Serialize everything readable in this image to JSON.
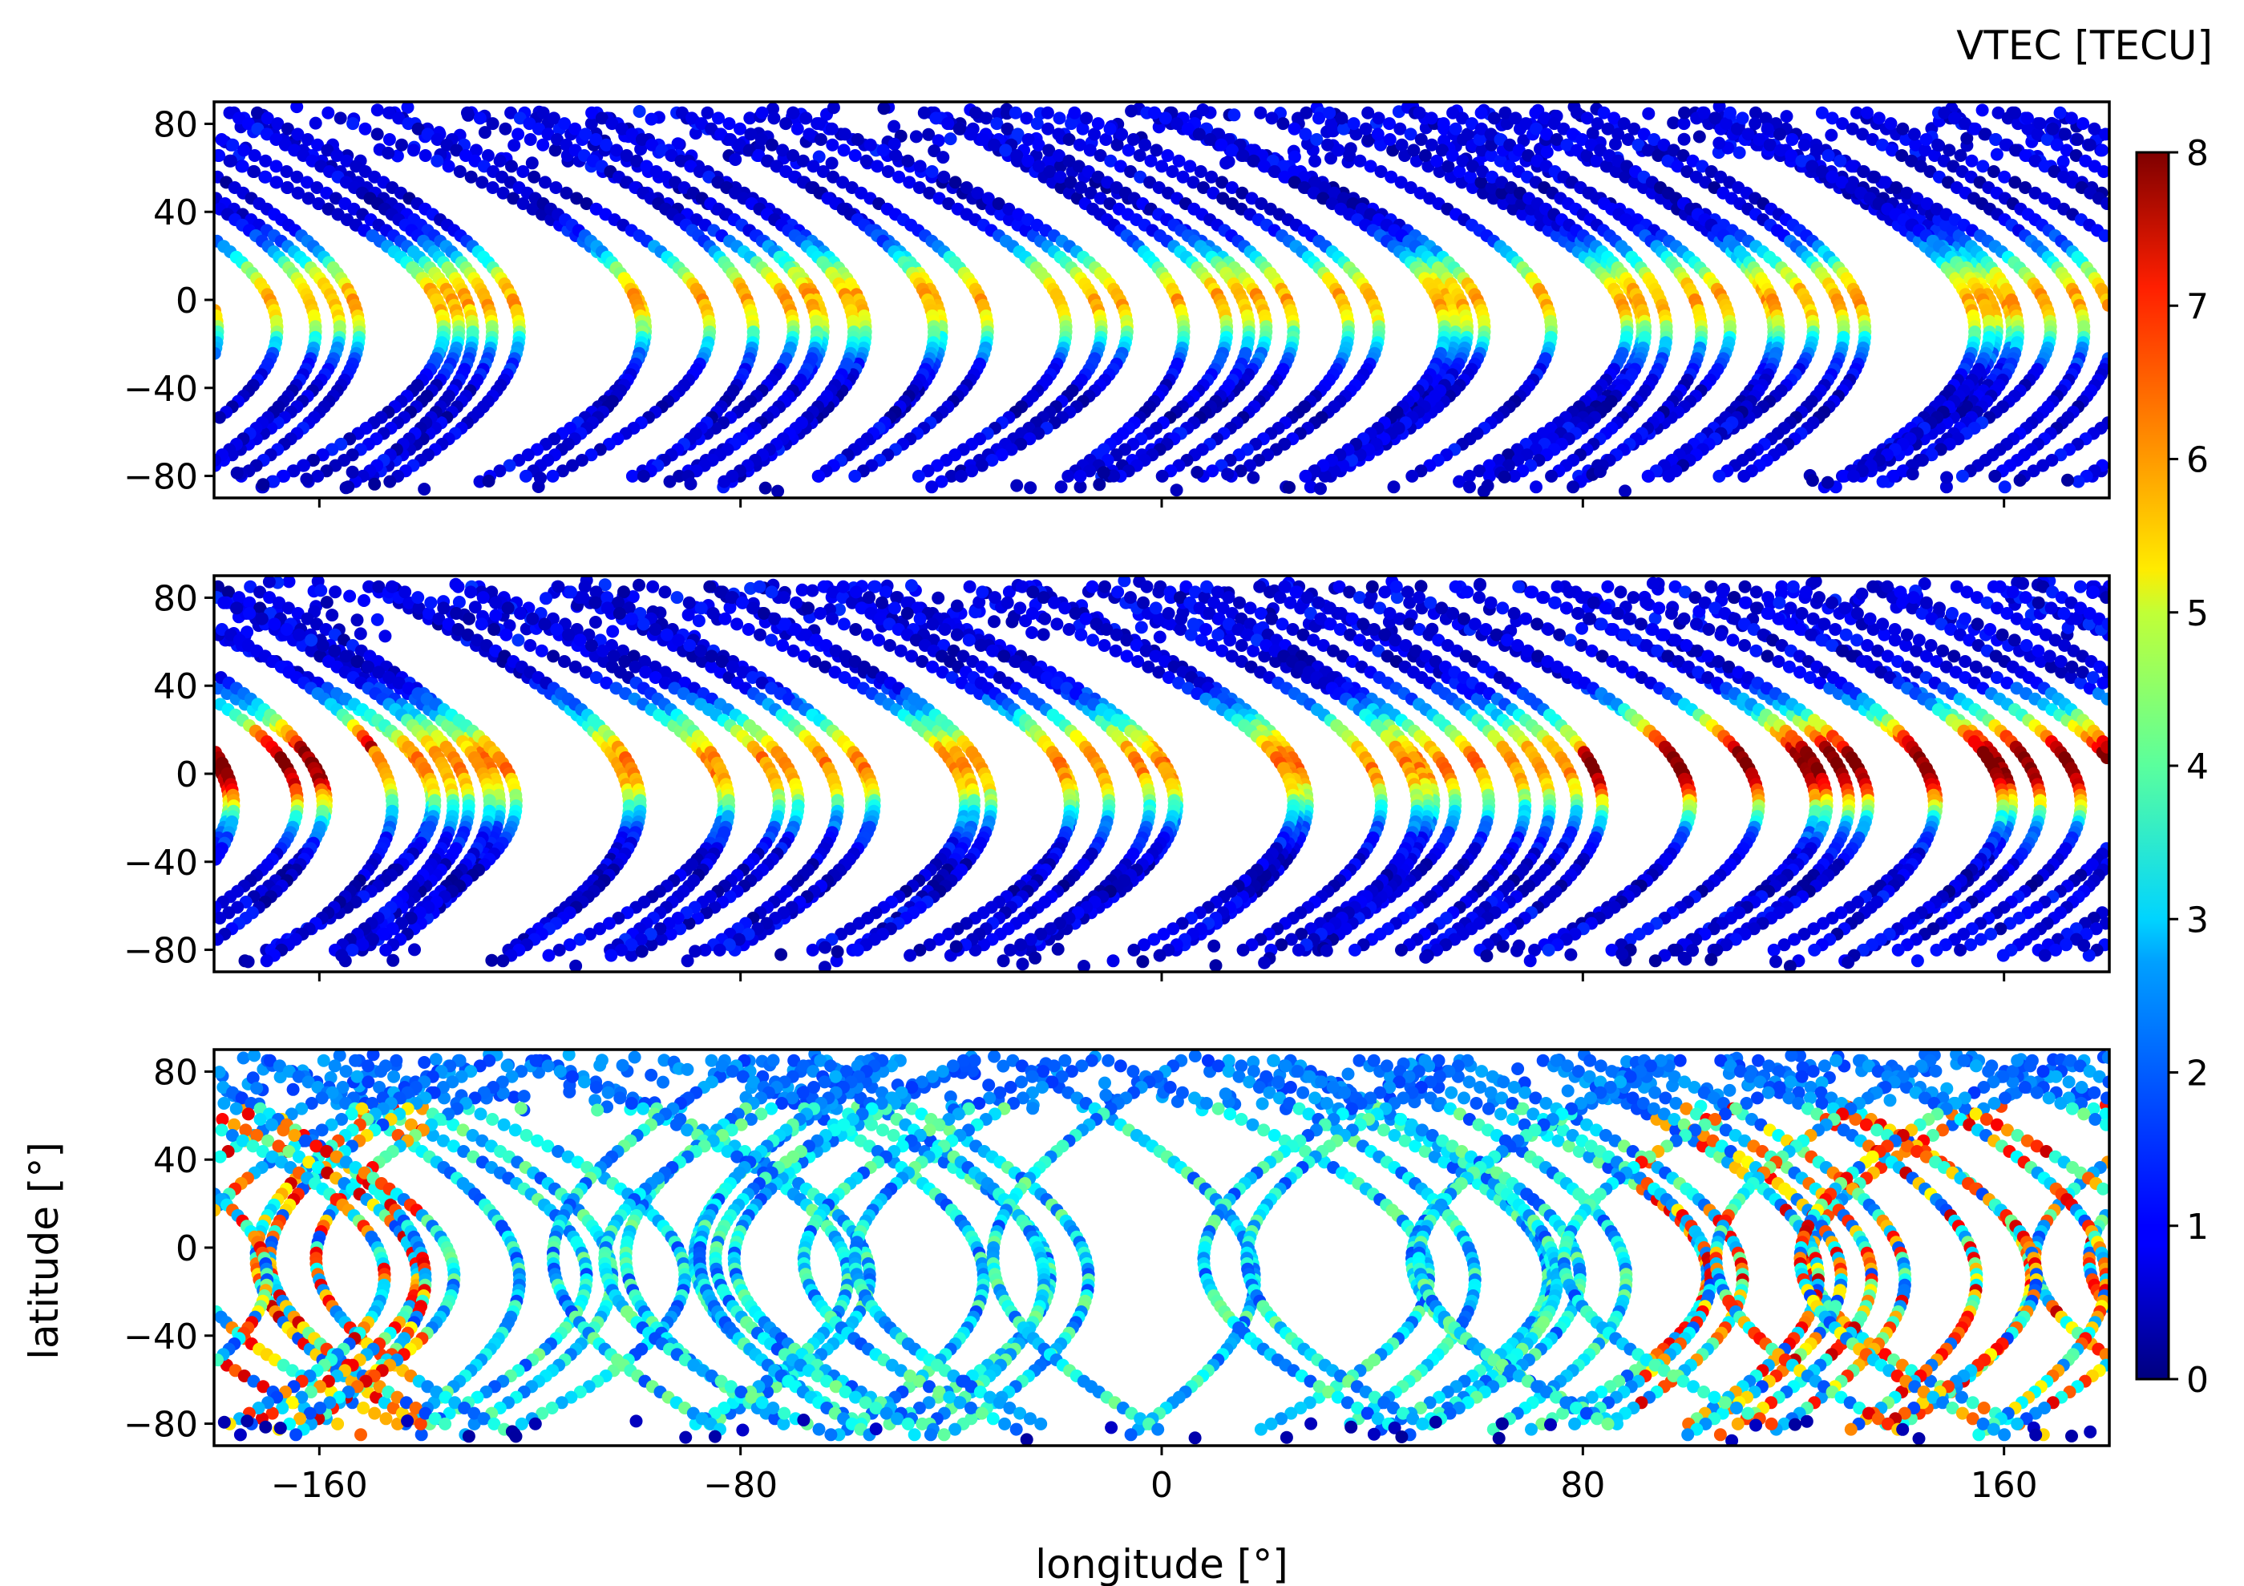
{
  "chart_data": {
    "type": "scatter",
    "colorbar": {
      "label": "VTEC [TECU]",
      "colormap": "jet",
      "vmin": 0,
      "vmax": 8,
      "ticks": [
        "0",
        "1",
        "2",
        "3",
        "4",
        "5",
        "6",
        "7",
        "8"
      ]
    },
    "x_axis": {
      "label": "longitude [°]",
      "range": [
        -180,
        180
      ],
      "ticks": [
        -160,
        -80,
        0,
        80,
        160
      ],
      "tick_labels": [
        "−160",
        "−80",
        "0",
        "80",
        "160"
      ]
    },
    "y_axis": {
      "label": "latitude [°]",
      "range": [
        -90,
        90
      ],
      "ticks": [
        80,
        40,
        0,
        -40,
        -80
      ],
      "tick_labels": [
        "80",
        "40",
        "0",
        "−40",
        "−80"
      ]
    },
    "panels": [
      {
        "ground_track_origins_lon": [
          -178,
          -152,
          -128,
          -112,
          -88,
          -70,
          -52,
          -30,
          -10,
          6,
          24,
          42,
          60,
          76,
          96,
          112,
          134,
          152,
          170
        ],
        "series": [
          {
            "name": "track",
            "points": [
              [
                -178,
                90
              ],
              [
                -175,
                60
              ],
              [
                -172,
                30
              ],
              [
                -170,
                10
              ],
              [
                -168,
                -10
              ],
              [
                -165,
                -40
              ],
              [
                -160,
                -70
              ],
              [
                -150,
                -85
              ]
            ]
          },
          {
            "name": "track",
            "points": [
              [
                -150,
                85
              ],
              [
                -145,
                50
              ],
              [
                -140,
                20
              ],
              [
                -138,
                0
              ],
              [
                -135,
                -30
              ],
              [
                -132,
                -60
              ],
              [
                -125,
                -82
              ]
            ]
          },
          {
            "name": "track",
            "points": [
              [
                -120,
                85
              ],
              [
                -115,
                55
              ],
              [
                -110,
                25
              ],
              [
                -107,
                5
              ],
              [
                -104,
                -25
              ],
              [
                -100,
                -55
              ],
              [
                -90,
                -82
              ]
            ]
          },
          {
            "name": "track",
            "points": [
              [
                -90,
                85
              ],
              [
                -85,
                50
              ],
              [
                -80,
                20
              ],
              [
                -78,
                0
              ],
              [
                -75,
                -30
              ],
              [
                -72,
                -60
              ],
              [
                -62,
                -82
              ]
            ]
          },
          {
            "name": "track",
            "points": [
              [
                -60,
                85
              ],
              [
                -55,
                55
              ],
              [
                -50,
                20
              ],
              [
                -48,
                0
              ],
              [
                -45,
                -30
              ],
              [
                -42,
                -60
              ],
              [
                -32,
                -82
              ]
            ]
          },
          {
            "name": "track",
            "points": [
              [
                -30,
                85
              ],
              [
                -25,
                50
              ],
              [
                -20,
                20
              ],
              [
                -18,
                0
              ],
              [
                -15,
                -30
              ],
              [
                -12,
                -55
              ],
              [
                -2,
                -80
              ]
            ]
          },
          {
            "name": "track",
            "points": [
              [
                0,
                85
              ],
              [
                5,
                55
              ],
              [
                10,
                25
              ],
              [
                12,
                5
              ],
              [
                15,
                -25
              ],
              [
                18,
                -55
              ],
              [
                28,
                -80
              ]
            ]
          },
          {
            "name": "track",
            "points": [
              [
                30,
                85
              ],
              [
                35,
                50
              ],
              [
                40,
                20
              ],
              [
                42,
                0
              ],
              [
                45,
                -30
              ],
              [
                48,
                -60
              ],
              [
                58,
                -82
              ]
            ]
          },
          {
            "name": "track",
            "points": [
              [
                60,
                85
              ],
              [
                65,
                55
              ],
              [
                70,
                20
              ],
              [
                72,
                0
              ],
              [
                75,
                -30
              ],
              [
                78,
                -55
              ],
              [
                88,
                -82
              ]
            ]
          },
          {
            "name": "track",
            "points": [
              [
                90,
                85
              ],
              [
                95,
                50
              ],
              [
                100,
                20
              ],
              [
                102,
                0
              ],
              [
                105,
                -30
              ],
              [
                108,
                -60
              ],
              [
                118,
                -82
              ]
            ]
          },
          {
            "name": "track",
            "points": [
              [
                120,
                85
              ],
              [
                125,
                55
              ],
              [
                130,
                25
              ],
              [
                132,
                5
              ],
              [
                135,
                -25
              ],
              [
                138,
                -55
              ],
              [
                148,
                -80
              ]
            ]
          },
          {
            "name": "track",
            "points": [
              [
                150,
                85
              ],
              [
                155,
                50
              ],
              [
                160,
                20
              ],
              [
                162,
                0
              ],
              [
                165,
                -30
              ],
              [
                168,
                -60
              ],
              [
                178,
                -82
              ]
            ]
          }
        ]
      },
      {
        "ground_track_origins_lon": [
          -178,
          -152,
          -128,
          -112,
          -88,
          -70,
          -52,
          -30,
          -10,
          6,
          24,
          42,
          60,
          76,
          96,
          112,
          134,
          152,
          170
        ],
        "series": []
      },
      {
        "ground_track_origins_lon": [
          -178,
          -152,
          -128,
          -112,
          -88,
          -70,
          -52,
          -30,
          -10,
          6,
          24,
          42,
          60,
          76,
          96,
          112,
          134,
          152,
          170
        ],
        "series": []
      }
    ]
  }
}
